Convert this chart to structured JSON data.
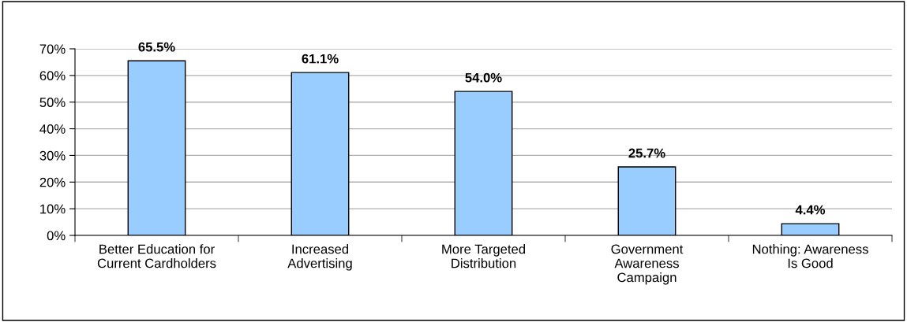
{
  "chart_data": {
    "type": "bar",
    "categories": [
      "Better Education for\nCurrent Cardholders",
      "Increased\nAdvertising",
      "More Targeted\nDistribution",
      "Government\nAwareness\nCampaign",
      "Nothing: Awareness\nIs Good"
    ],
    "values": [
      65.5,
      61.1,
      54.0,
      25.7,
      4.4
    ],
    "value_labels": [
      "65.5%",
      "61.1%",
      "54.0%",
      "25.7%",
      "4.4%"
    ],
    "color": "#99ccff",
    "ylim": [
      0,
      70
    ],
    "yticks": [
      {
        "value": 0,
        "label": "0%"
      },
      {
        "value": 10,
        "label": "10%"
      },
      {
        "value": 20,
        "label": "20%"
      },
      {
        "value": 30,
        "label": "30%"
      },
      {
        "value": 40,
        "label": "40%"
      },
      {
        "value": 50,
        "label": "50%"
      },
      {
        "value": 60,
        "label": "60%"
      },
      {
        "value": 70,
        "label": "70%"
      }
    ],
    "grid": "y"
  }
}
